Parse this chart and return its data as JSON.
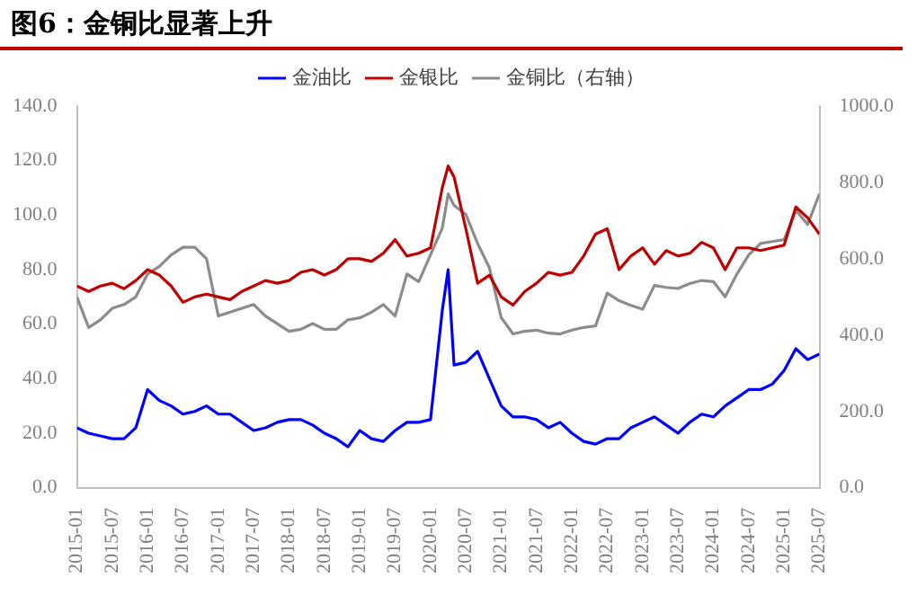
{
  "chart_data": {
    "type": "line",
    "title": "图6：金铜比显著上升",
    "legend": "top",
    "grid": false,
    "x": [
      "2015-01",
      "2015-03",
      "2015-05",
      "2015-07",
      "2015-09",
      "2015-11",
      "2016-01",
      "2016-03",
      "2016-05",
      "2016-07",
      "2016-09",
      "2016-11",
      "2017-01",
      "2017-03",
      "2017-05",
      "2017-07",
      "2017-09",
      "2017-11",
      "2018-01",
      "2018-03",
      "2018-05",
      "2018-07",
      "2018-09",
      "2018-11",
      "2019-01",
      "2019-03",
      "2019-05",
      "2019-07",
      "2019-09",
      "2019-11",
      "2020-01",
      "2020-03",
      "2020-04",
      "2020-05",
      "2020-07",
      "2020-09",
      "2020-11",
      "2021-01",
      "2021-03",
      "2021-05",
      "2021-07",
      "2021-09",
      "2021-11",
      "2022-01",
      "2022-03",
      "2022-05",
      "2022-07",
      "2022-09",
      "2022-11",
      "2023-01",
      "2023-03",
      "2023-05",
      "2023-07",
      "2023-09",
      "2023-11",
      "2024-01",
      "2024-03",
      "2024-05",
      "2024-07",
      "2024-09",
      "2024-11",
      "2025-01",
      "2025-03",
      "2025-05",
      "2025-07"
    ],
    "series": [
      {
        "name": "金油比",
        "color": "#0000ff",
        "values": [
          22,
          20,
          19,
          18,
          18,
          22,
          36,
          32,
          30,
          27,
          28,
          30,
          27,
          27,
          24,
          21,
          22,
          24,
          25,
          25,
          23,
          20,
          18,
          15,
          21,
          18,
          17,
          21,
          24,
          24,
          25,
          65,
          80,
          45,
          46,
          50,
          40,
          30,
          26,
          26,
          25,
          22,
          24,
          20,
          17,
          16,
          18,
          18,
          22,
          24,
          26,
          23,
          20,
          24,
          27,
          26,
          30,
          33,
          36,
          36,
          38,
          43,
          51,
          47,
          49
        ]
      },
      {
        "name": "金银比",
        "color": "#c00000",
        "values": [
          74,
          72,
          74,
          75,
          73,
          76,
          80,
          78,
          74,
          68,
          70,
          71,
          70,
          69,
          72,
          74,
          76,
          75,
          76,
          79,
          80,
          78,
          80,
          84,
          84,
          83,
          86,
          91,
          85,
          86,
          88,
          110,
          118,
          114,
          95,
          75,
          78,
          70,
          67,
          72,
          75,
          79,
          78,
          79,
          85,
          93,
          95,
          80,
          85,
          88,
          82,
          87,
          85,
          86,
          90,
          88,
          80,
          88,
          88,
          87,
          88,
          89,
          103,
          99,
          93
        ]
      },
      {
        "name": "金铜比（右轴）",
        "color": "#8c8c8c",
        "axis": "y2",
        "values": [
          500,
          420,
          440,
          470,
          480,
          500,
          560,
          580,
          610,
          630,
          630,
          600,
          450,
          460,
          470,
          480,
          450,
          430,
          410,
          415,
          430,
          415,
          415,
          440,
          445,
          460,
          480,
          450,
          560,
          540,
          610,
          680,
          770,
          740,
          716,
          640,
          576,
          446,
          403,
          410,
          413,
          405,
          403,
          413,
          420,
          424,
          510,
          490,
          478,
          468,
          530,
          525,
          522,
          535,
          543,
          540,
          500,
          560,
          610,
          640,
          645,
          650,
          727,
          690,
          770
        ]
      }
    ],
    "xlim": [
      "2015-01",
      "2025-07"
    ],
    "xticks": [
      "2015-01",
      "2015-07",
      "2016-01",
      "2016-07",
      "2017-01",
      "2017-07",
      "2018-01",
      "2018-07",
      "2019-01",
      "2019-07",
      "2020-01",
      "2020-07",
      "2021-01",
      "2021-07",
      "2022-01",
      "2022-07",
      "2023-01",
      "2023-07",
      "2024-01",
      "2024-07",
      "2025-01",
      "2025-07"
    ],
    "ylim": [
      0,
      140
    ],
    "yticks": [
      {
        "value": 0,
        "label": "0.0"
      },
      {
        "value": 20,
        "label": "20.0"
      },
      {
        "value": 40,
        "label": "40.0"
      },
      {
        "value": 60,
        "label": "60.0"
      },
      {
        "value": 80,
        "label": "80.0"
      },
      {
        "value": 100,
        "label": "100.0"
      },
      {
        "value": 120,
        "label": "120.0"
      },
      {
        "value": 140,
        "label": "140.0"
      }
    ],
    "y2lim": [
      0,
      1000
    ],
    "y2ticks": [
      {
        "value": 0,
        "label": "0.0"
      },
      {
        "value": 200,
        "label": "200.0"
      },
      {
        "value": 400,
        "label": "400.0"
      },
      {
        "value": 600,
        "label": "600.0"
      },
      {
        "value": 800,
        "label": "800.0"
      },
      {
        "value": 1000,
        "label": "1000.0"
      }
    ]
  }
}
